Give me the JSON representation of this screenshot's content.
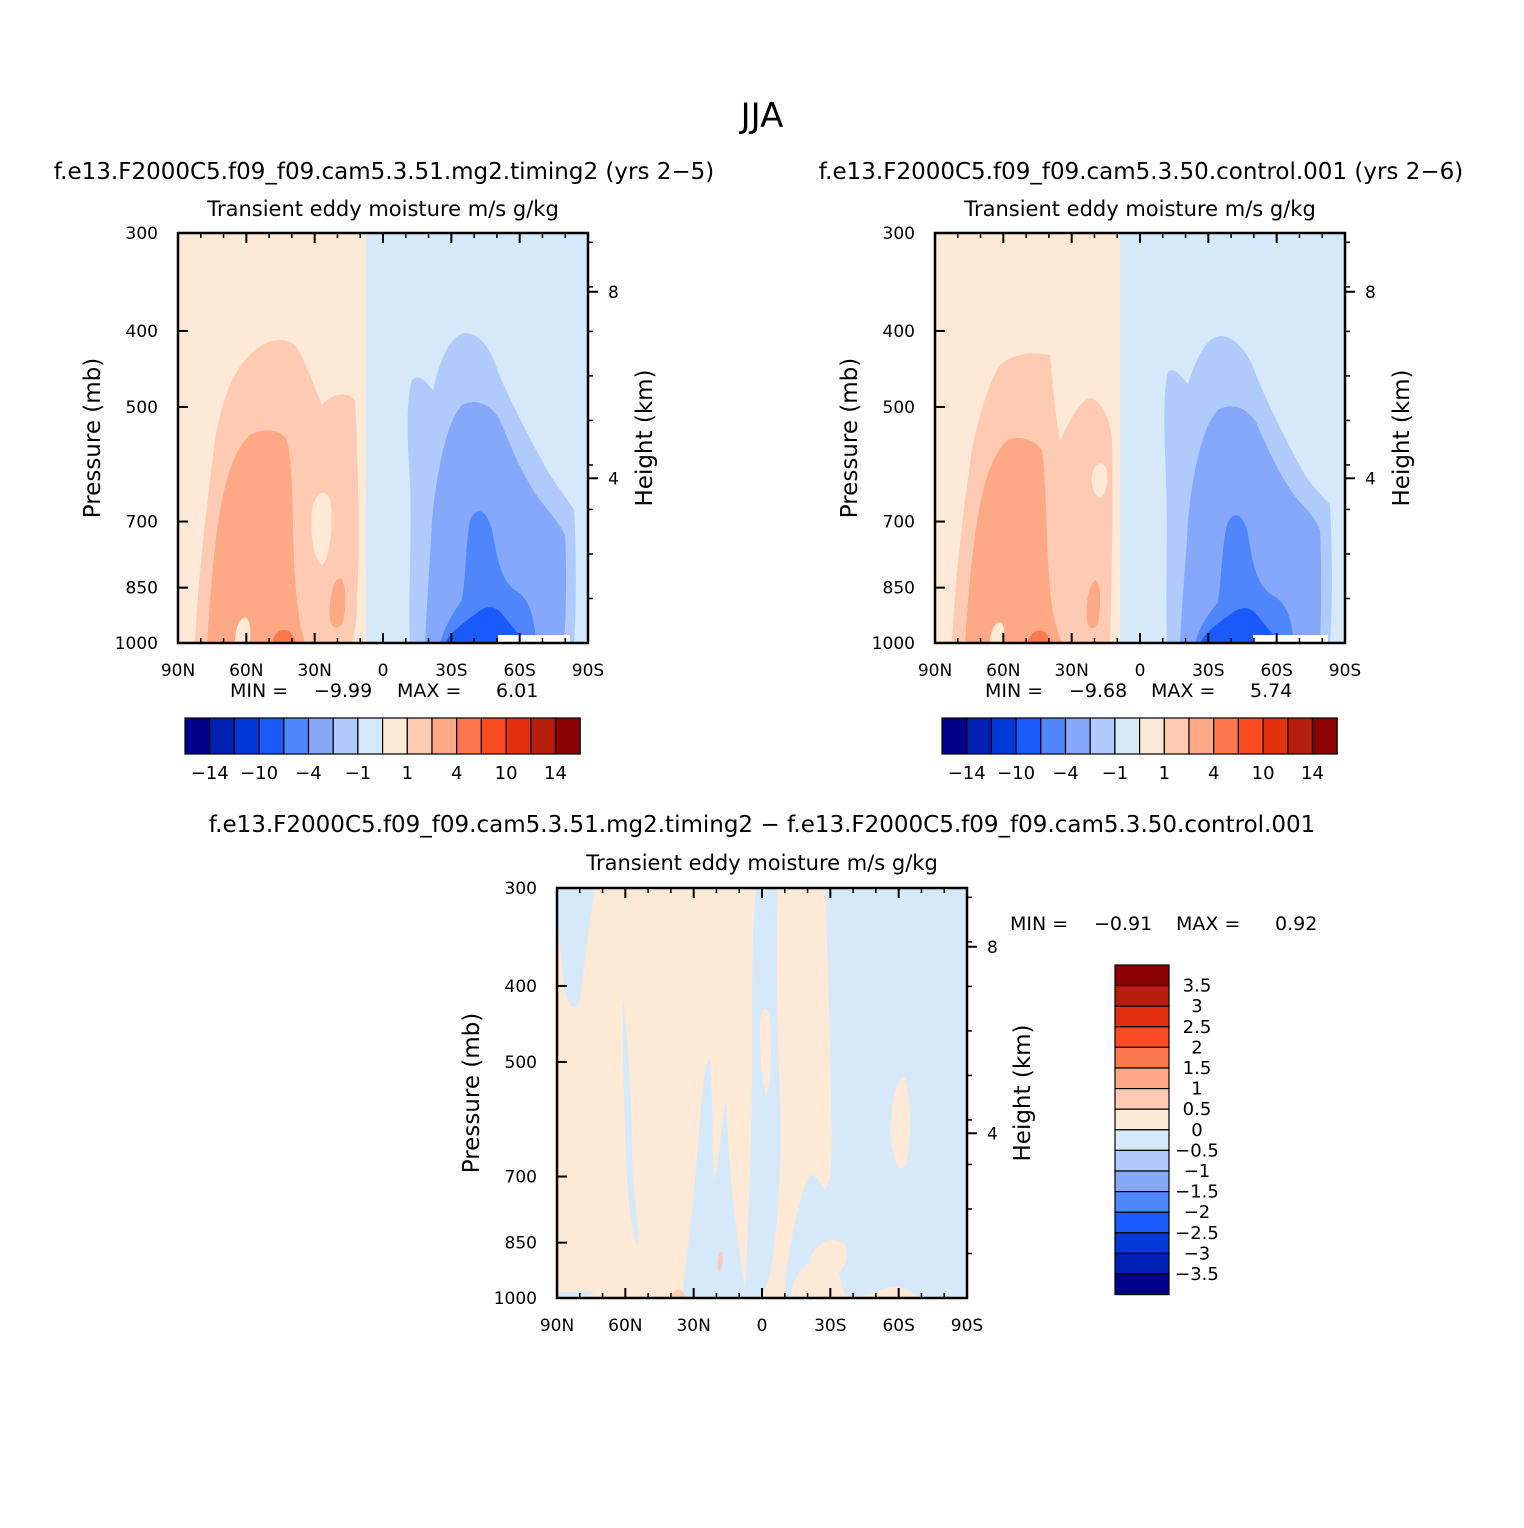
{
  "figure": {
    "title": "JJA"
  },
  "colors": {
    "n1": "#d6e9fb",
    "n2": "#b0cbfb",
    "n3": "#85a8fb",
    "n4": "#4f86fb",
    "n5": "#1a5afb",
    "p1": "#fee8d6",
    "p2": "#fecbb2",
    "p3": "#fea985",
    "p4": "#fe784e",
    "p5": "#fe4c22",
    "white": "#ffffff"
  },
  "chart_data": [
    {
      "type": "contour",
      "title": "f.e13.F2000C5.f09_f09.cam5.3.51.mg2.timing2 (yrs 2−5)",
      "subtitle": "Transient eddy moisture m/s g/kg",
      "ylabel": "Pressure (mb)",
      "y2label": "Height (km)",
      "xticks": [
        "90N",
        "60N",
        "30N",
        "0",
        "30S",
        "60S",
        "90S"
      ],
      "yticks": [
        "300",
        "400",
        "500",
        "700",
        "850",
        "1000"
      ],
      "y2ticks": [
        "8",
        "4"
      ],
      "min_label": "MIN =",
      "min": "−9.99",
      "max_label": "MAX =",
      "max": "6.01"
    },
    {
      "type": "contour",
      "title": "f.e13.F2000C5.f09_f09.cam5.3.50.control.001 (yrs 2−6)",
      "subtitle": "Transient eddy moisture m/s g/kg",
      "ylabel": "Pressure (mb)",
      "y2label": "Height (km)",
      "xticks": [
        "90N",
        "60N",
        "30N",
        "0",
        "30S",
        "60S",
        "90S"
      ],
      "yticks": [
        "300",
        "400",
        "500",
        "700",
        "850",
        "1000"
      ],
      "y2ticks": [
        "8",
        "4"
      ],
      "min_label": "MIN =",
      "min": "−9.68",
      "max_label": "MAX =",
      "max": "5.74"
    },
    {
      "type": "contour",
      "title": "f.e13.F2000C5.f09_f09.cam5.3.51.mg2.timing2 − f.e13.F2000C5.f09_f09.cam5.3.50.control.001",
      "subtitle": "Transient eddy moisture m/s g/kg",
      "ylabel": "Pressure (mb)",
      "y2label": "Height (km)",
      "xticks": [
        "90N",
        "60N",
        "30N",
        "0",
        "30S",
        "60S",
        "90S"
      ],
      "yticks": [
        "300",
        "400",
        "500",
        "700",
        "850",
        "1000"
      ],
      "y2ticks": [
        "8",
        "4"
      ],
      "min_label": "MIN =",
      "min": "−0.91",
      "max_label": "MAX =",
      "max": "0.92"
    }
  ],
  "colorbars": {
    "horizontal": {
      "colors": [
        "#00008b",
        "#0020b4",
        "#0039d9",
        "#1a5afb",
        "#4f86fb",
        "#85a8fb",
        "#b0cbfb",
        "#d6e9fb",
        "#fee8d6",
        "#fecbb2",
        "#fea985",
        "#fe784e",
        "#fe4c22",
        "#e53010",
        "#b81e0c",
        "#8b0000"
      ],
      "labels": [
        "−14",
        "−10",
        "−4",
        "−1",
        "1",
        "4",
        "10",
        "14"
      ]
    },
    "vertical": {
      "colors": [
        "#8b0000",
        "#b81e0c",
        "#e53010",
        "#fe4c22",
        "#fe784e",
        "#fea985",
        "#fecbb2",
        "#fee8d6",
        "#d6e9fb",
        "#b0cbfb",
        "#85a8fb",
        "#4f86fb",
        "#1a5afb",
        "#0039d9",
        "#0020b4",
        "#00008b"
      ],
      "labels": [
        "3.5",
        "3",
        "2.5",
        "2",
        "1.5",
        "1",
        "0.5",
        "0",
        "−0.5",
        "−1",
        "−1.5",
        "−2",
        "−2.5",
        "−3",
        "−3.5"
      ]
    }
  }
}
